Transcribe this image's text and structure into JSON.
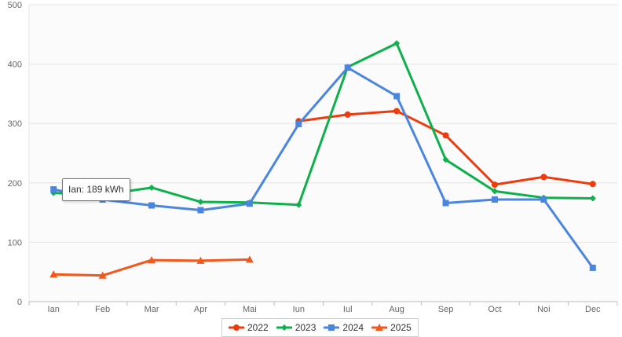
{
  "chart_data": {
    "type": "line",
    "categories": [
      "Ian",
      "Feb",
      "Mar",
      "Apr",
      "Mai",
      "Iun",
      "Iul",
      "Aug",
      "Sep",
      "Oct",
      "Noi",
      "Dec"
    ],
    "ylim": [
      0,
      500
    ],
    "yticks": [
      "0",
      "100",
      "200",
      "300",
      "400",
      "500"
    ],
    "grid": true,
    "legend_position": "bottom",
    "series": [
      {
        "name": "2022",
        "color": "#ee3b0e",
        "marker": "circle",
        "values": [
          null,
          null,
          null,
          null,
          null,
          304,
          315,
          321,
          280,
          197,
          210,
          198
        ]
      },
      {
        "name": "2023",
        "color": "#0db04b",
        "marker": "diamond",
        "values": [
          183,
          180,
          192,
          168,
          167,
          163,
          395,
          435,
          239,
          186,
          175,
          174
        ]
      },
      {
        "name": "2024",
        "color": "#4a86e0",
        "marker": "square",
        "values": [
          189,
          172,
          162,
          154,
          165,
          299,
          394,
          346,
          166,
          172,
          172,
          57
        ]
      },
      {
        "name": "2025",
        "color": "#f1581b",
        "marker": "triangle",
        "values": [
          46,
          44,
          70,
          69,
          71,
          null,
          null,
          null,
          null,
          null,
          null,
          null
        ]
      }
    ],
    "tooltip": {
      "text": "Ian: 189 kWh",
      "series": "2024",
      "category": "Ian"
    }
  }
}
